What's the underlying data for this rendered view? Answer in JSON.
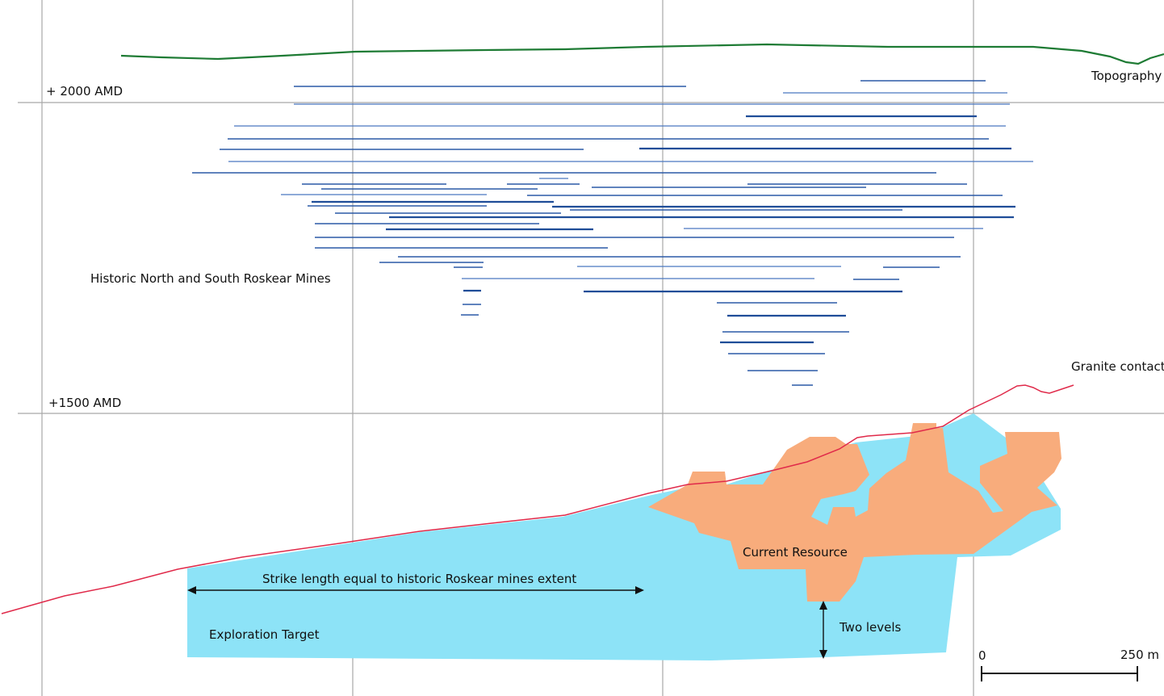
{
  "labels": {
    "topography": "Topography",
    "elev_2000": "+ 2000 AMD",
    "elev_1500": "+1500 AMD",
    "historic_mines": "Historic North and South Roskear Mines",
    "granite_contact": "Granite contact",
    "current_resource": "Current Resource",
    "strike_length": "Strike length equal to historic Roskear mines extent",
    "exploration_target": "Exploration Target",
    "two_levels": "Two levels"
  },
  "scale_bar": {
    "start_label": "0",
    "end_label": "250 m",
    "length_m": 250
  },
  "colors": {
    "topography": "#1e7b34",
    "granite_contact": "#e02a4a",
    "exploration_target_fill": "#8de3f7",
    "current_resource_fill": "#f8ac7c",
    "mine_levels": "#2b5aa7",
    "grid": "#a8a8a8"
  }
}
